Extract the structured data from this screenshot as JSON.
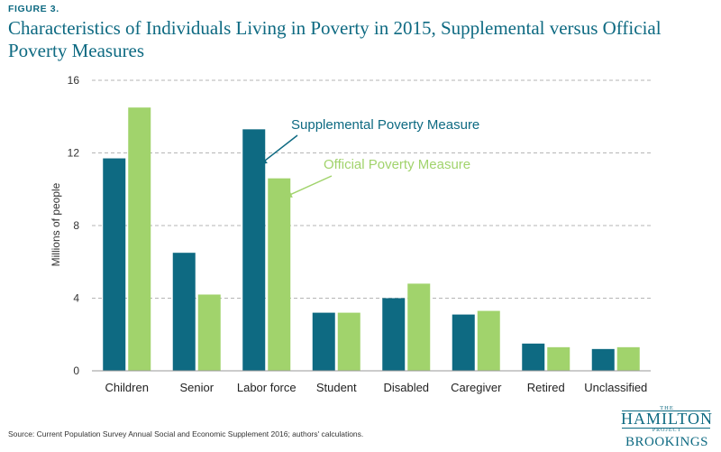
{
  "figure_label": "FIGURE 3.",
  "chart_data": {
    "type": "bar",
    "title": "Characteristics of Individuals Living in Poverty in 2015, Supplemental versus Official Poverty Measures",
    "ylabel": "Millions of people",
    "xlabel": "",
    "ylim": [
      0,
      16
    ],
    "yticks": [
      0,
      4,
      8,
      12,
      16
    ],
    "grid": true,
    "legend": "annotations with arrows near Labor force bars",
    "categories": [
      "Children",
      "Senior",
      "Labor force",
      "Student",
      "Disabled",
      "Caregiver",
      "Retired",
      "Unclassified"
    ],
    "series": [
      {
        "name": "Supplemental Poverty Measure",
        "color": "#0e6a82",
        "values": [
          11.7,
          6.5,
          13.3,
          3.2,
          4.0,
          3.1,
          1.5,
          1.2
        ]
      },
      {
        "name": "Official Poverty Measure",
        "color": "#a1d36c",
        "values": [
          14.5,
          4.2,
          10.6,
          3.2,
          4.8,
          3.3,
          1.3,
          1.3
        ]
      }
    ]
  },
  "source": "Source: Current Population Survey Annual Social and Economic Supplement 2016; authors' calculations.",
  "logo": {
    "the": "THE",
    "hamilton": "HAMILTON",
    "project": "PROJECT",
    "brookings": "BROOKINGS"
  }
}
